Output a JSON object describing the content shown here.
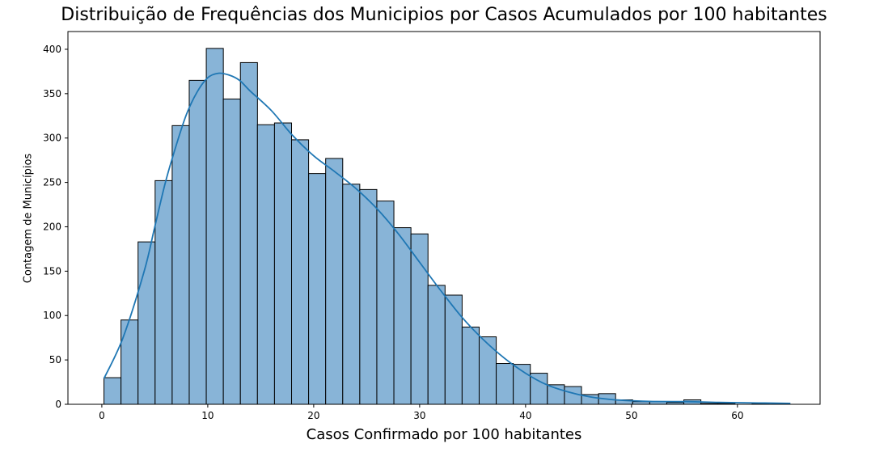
{
  "chart_data": {
    "type": "bar",
    "subtype": "histogram-with-kde",
    "title": "Distribuição de Frequências dos Municipios por Casos Acumulados por 100 habitantes",
    "xlabel": "Casos Confirmado por 100 habitantes",
    "ylabel": "Contagem de Municípios",
    "xlim": [
      -3.2,
      67.8
    ],
    "ylim": [
      0,
      420
    ],
    "x_ticks": [
      0,
      10,
      20,
      30,
      40,
      50,
      60
    ],
    "y_ticks": [
      0,
      50,
      100,
      150,
      200,
      250,
      300,
      350,
      400
    ],
    "bin_start": 0.2,
    "bin_width": 1.61,
    "values": [
      30,
      95,
      183,
      252,
      314,
      365,
      401,
      344,
      385,
      315,
      317,
      298,
      260,
      277,
      248,
      242,
      229,
      199,
      192,
      134,
      123,
      87,
      76,
      46,
      45,
      35,
      22,
      20,
      11,
      12,
      5,
      3,
      3,
      2,
      5,
      1,
      1,
      0,
      1,
      0
    ],
    "kde": {
      "x": [
        0.2,
        2,
        4,
        5,
        6,
        7,
        8,
        9,
        10,
        11,
        12,
        13,
        14,
        16,
        18,
        20,
        22,
        24,
        26,
        28,
        30,
        32,
        34,
        36,
        38,
        40,
        42,
        44,
        46,
        48,
        50,
        52,
        55,
        58,
        62,
        65
      ],
      "y": [
        29,
        75,
        150,
        200,
        250,
        291,
        327,
        352,
        368,
        373,
        371,
        365,
        353,
        331,
        303,
        280,
        262,
        243,
        220,
        192,
        160,
        128,
        98,
        73,
        52,
        35,
        22,
        14,
        8.5,
        5.5,
        4,
        3.2,
        3,
        2.2,
        1.5,
        1
      ]
    },
    "colors": {
      "bar_fill": "#88b4d7",
      "bar_edge": "#000000",
      "kde_line": "#1f77b4"
    },
    "grid": false,
    "legend": "none"
  }
}
